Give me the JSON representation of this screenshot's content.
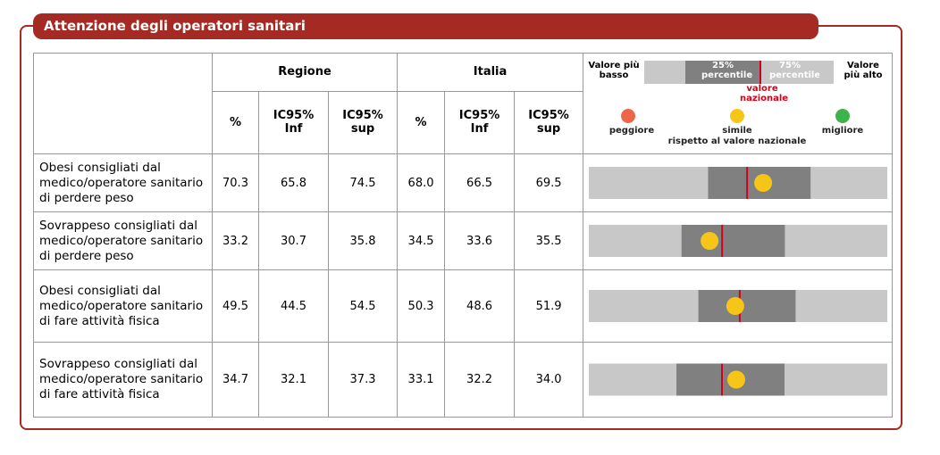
{
  "header": {
    "title": "Attenzione degli operatori sanitari"
  },
  "table": {
    "group_headers": [
      "Regione",
      "Italia"
    ],
    "column_headers": [
      "%",
      "IC95% Inf",
      "IC95% sup",
      "%",
      "IC95% Inf",
      "IC95% sup"
    ],
    "rows": [
      {
        "label": "Obesi consigliati dal medico/operatore sanitario di perdere peso",
        "values": [
          "70.3",
          "65.8",
          "74.5",
          "68.0",
          "66.5",
          "69.5"
        ],
        "graphic": {
          "range": [
            45.3,
            88.1
          ],
          "p25": 62.4,
          "p75": 77.1
        }
      },
      {
        "label": "Sovrappeso consigliati dal medico/operatore sanitario di perdere peso",
        "values": [
          "33.2",
          "30.7",
          "35.8",
          "34.5",
          "33.6",
          "35.5"
        ],
        "graphic": {
          "range": [
            20.7,
            51.6
          ],
          "p25": 30.3,
          "p75": 41.0
        }
      },
      {
        "label": "Obesi consigliati dal medico/operatore sanitario di fare attività fisica",
        "values": [
          "49.5",
          "44.5",
          "54.5",
          "50.3",
          "48.6",
          "51.9"
        ],
        "graphic": {
          "range": [
            23.3,
            76.7
          ],
          "p25": 42.9,
          "p75": 60.3
        }
      },
      {
        "label": "Sovrappeso consigliati dal medico/operatore sanitario di fare attività fisica",
        "values": [
          "34.7",
          "32.1",
          "37.3",
          "33.1",
          "32.2",
          "34.0"
        ],
        "graphic": {
          "range": [
            18.2,
            51.6
          ],
          "p25": 28.0,
          "p75": 40.1
        }
      }
    ]
  },
  "legend": {
    "lowest": "Valore più basso",
    "p25": "25% percentile",
    "p75": "75% percentile",
    "highest": "Valore più alto",
    "national": "valore nazionale",
    "worse": "peggiore",
    "similar": "simile",
    "similar_note": "rispetto al valore nazionale",
    "better": "migliore"
  }
}
